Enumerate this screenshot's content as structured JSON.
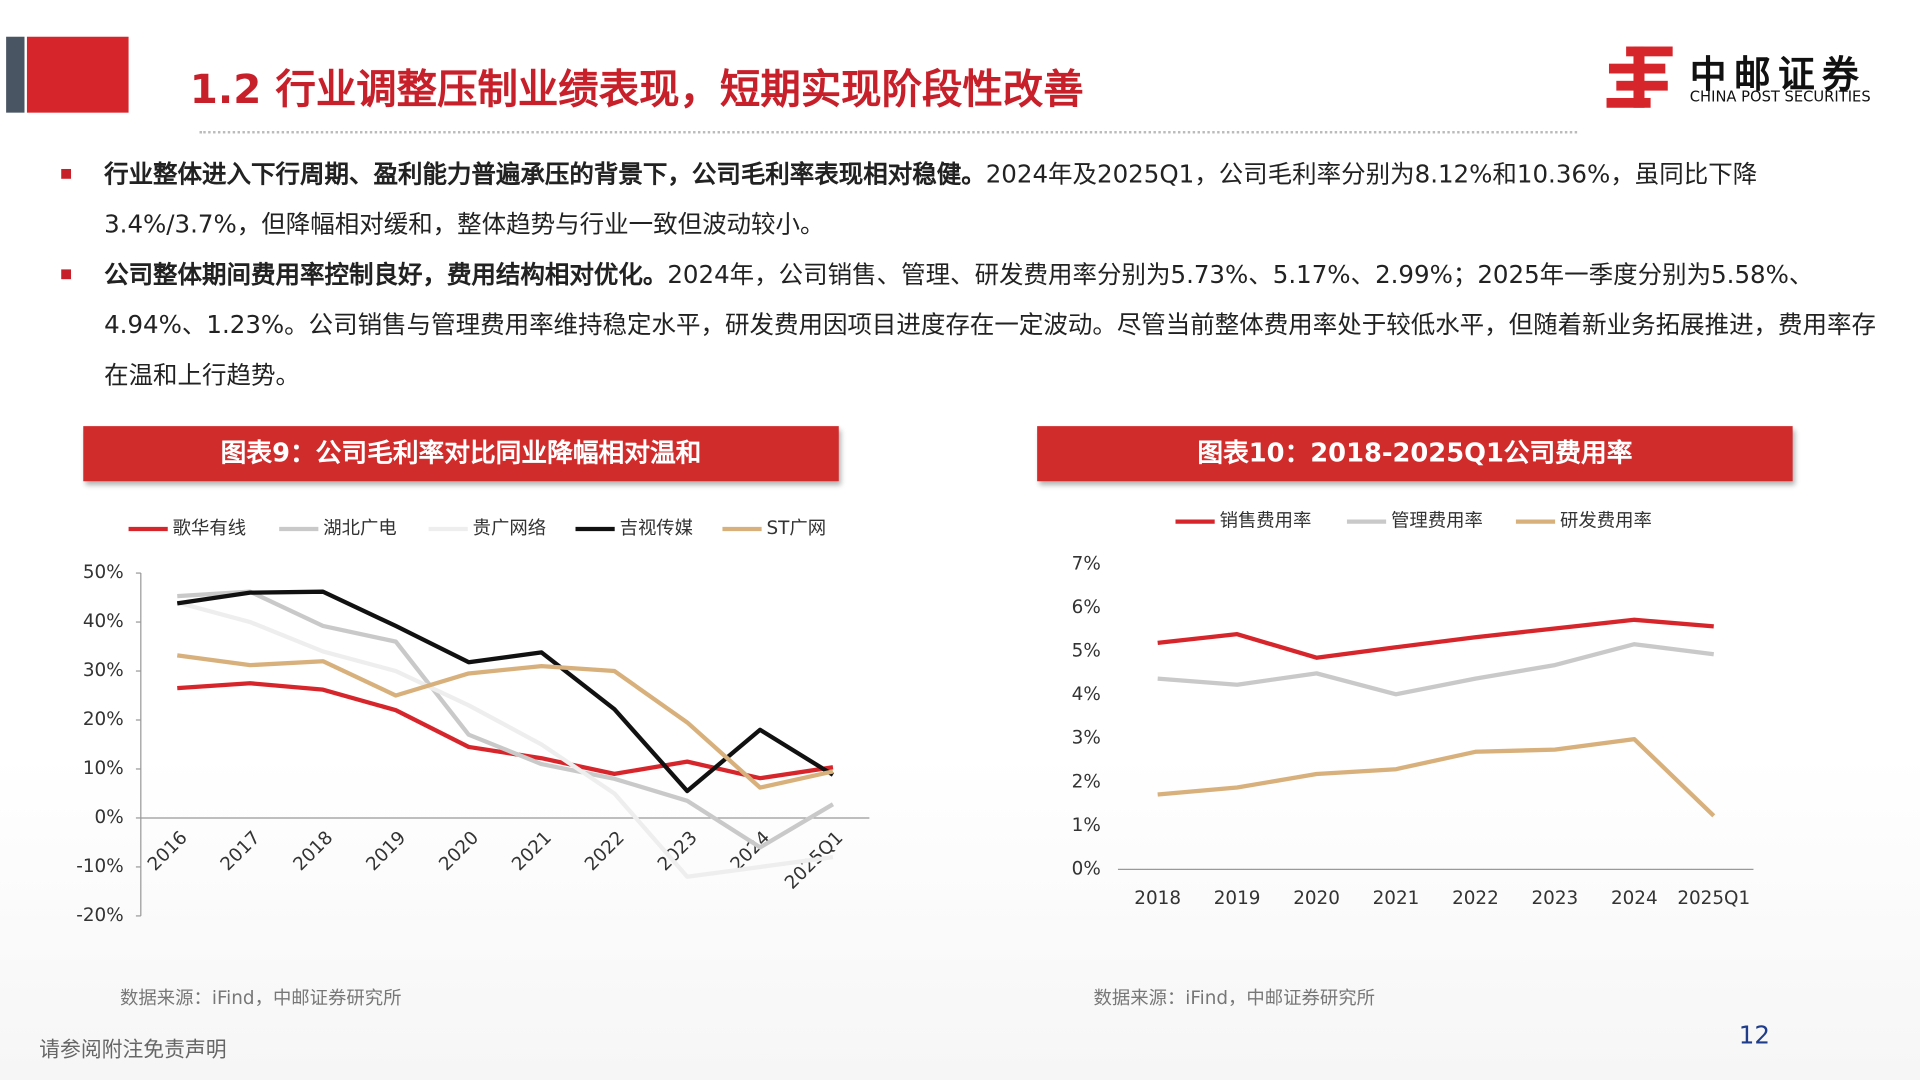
{
  "header": {
    "title": "1.2 行业调整压制业绩表现，短期实现阶段性改善",
    "logo": "中邮证券",
    "logo_sub": "CHINA POST SECURITIES"
  },
  "bullets": [
    {
      "bold": "行业整体进入下行周期、盈利能力普遍承压的背景下，公司毛利率表现相对稳健。",
      "text": "2024年及2025Q1，公司毛利率分别为8.12%和10.36%，虽同比下降3.4%/3.7%，但降幅相对缓和，整体趋势与行业一致但波动较小。"
    },
    {
      "bold": "公司整体期间费用率控制良好，费用结构相对优化。",
      "text": "2024年，公司销售、管理、研发费用率分别为5.73%、5.17%、2.99%；2025年一季度分别为5.58%、4.94%、1.23%。公司销售与管理费用率维持稳定水平，研发费用因项目进度存在一定波动。尽管当前整体费用率处于较低水平，但随着新业务拓展推进，费用率存在温和上行趋势。"
    }
  ],
  "chart_data": [
    {
      "type": "line",
      "title": "图表9：公司毛利率对比同业降幅相对温和",
      "source": "数据来源：iFind，中邮证券研究所",
      "categories": [
        "2016",
        "2017",
        "2018",
        "2019",
        "2020",
        "2021",
        "2022",
        "2023",
        "2024",
        "2025Q1"
      ],
      "series": [
        {
          "name": "歌华有线",
          "color": "#d7262b",
          "values": [
            26.5,
            27.5,
            26.2,
            22,
            14.5,
            12.2,
            9,
            11.5,
            8.12,
            10.36
          ]
        },
        {
          "name": "湖北广电",
          "color": "#c9c9c9",
          "values": [
            45.3,
            46.2,
            39.2,
            36,
            17,
            11,
            8,
            3.5,
            -6,
            2.8
          ]
        },
        {
          "name": "贵广网络",
          "color": "#eeeeee",
          "values": [
            44,
            40,
            34,
            30,
            23,
            15,
            5,
            -12,
            -10,
            -8
          ]
        },
        {
          "name": "吉视传媒",
          "color": "#111111",
          "values": [
            43.8,
            46,
            46.2,
            39.2,
            31.8,
            33.8,
            22.2,
            5.5,
            18,
            8.8
          ]
        },
        {
          "name": "ST广网",
          "color": "#d8b07c",
          "values": [
            33.2,
            31.2,
            32,
            25,
            29.5,
            31,
            30,
            19.5,
            6.2,
            9.5
          ]
        }
      ],
      "ylim": [
        -20,
        50
      ],
      "yticks": [
        {
          "value": -20,
          "label": "-20%"
        },
        {
          "value": -10,
          "label": "-10%"
        },
        {
          "value": 0,
          "label": "0%"
        },
        {
          "value": 10,
          "label": "10%"
        },
        {
          "value": 20,
          "label": "20%"
        },
        {
          "value": 30,
          "label": "30%"
        },
        {
          "value": 40,
          "label": "40%"
        },
        {
          "value": 50,
          "label": "50%"
        }
      ],
      "legend": "top",
      "grid": false
    },
    {
      "type": "line",
      "title": "图表10：2018-2025Q1公司费用率",
      "source": "数据来源：iFind，中邮证券研究所",
      "categories": [
        "2018",
        "2019",
        "2020",
        "2021",
        "2022",
        "2023",
        "2024",
        "2025Q1"
      ],
      "series": [
        {
          "name": "销售费用率",
          "color": "#d7262b",
          "values": [
            5.2,
            5.4,
            4.86,
            5.1,
            5.33,
            5.53,
            5.73,
            5.58
          ]
        },
        {
          "name": "管理费用率",
          "color": "#c9c9c9",
          "values": [
            4.38,
            4.24,
            4.5,
            4.02,
            4.38,
            4.69,
            5.17,
            4.94
          ]
        },
        {
          "name": "研发费用率",
          "color": "#d8b07c",
          "values": [
            1.72,
            1.88,
            2.19,
            2.3,
            2.7,
            2.75,
            2.99,
            1.23
          ]
        }
      ],
      "ylim": [
        0,
        7
      ],
      "yticks": [
        {
          "value": 0,
          "label": "0%"
        },
        {
          "value": 1,
          "label": "1%"
        },
        {
          "value": 2,
          "label": "2%"
        },
        {
          "value": 3,
          "label": "3%"
        },
        {
          "value": 4,
          "label": "4%"
        },
        {
          "value": 5,
          "label": "5%"
        },
        {
          "value": 6,
          "label": "6%"
        },
        {
          "value": 7,
          "label": "7%"
        }
      ],
      "legend": "top",
      "grid": false
    }
  ],
  "footer": {
    "disclaimer": "请参阅附注免责声明",
    "page": 12
  }
}
